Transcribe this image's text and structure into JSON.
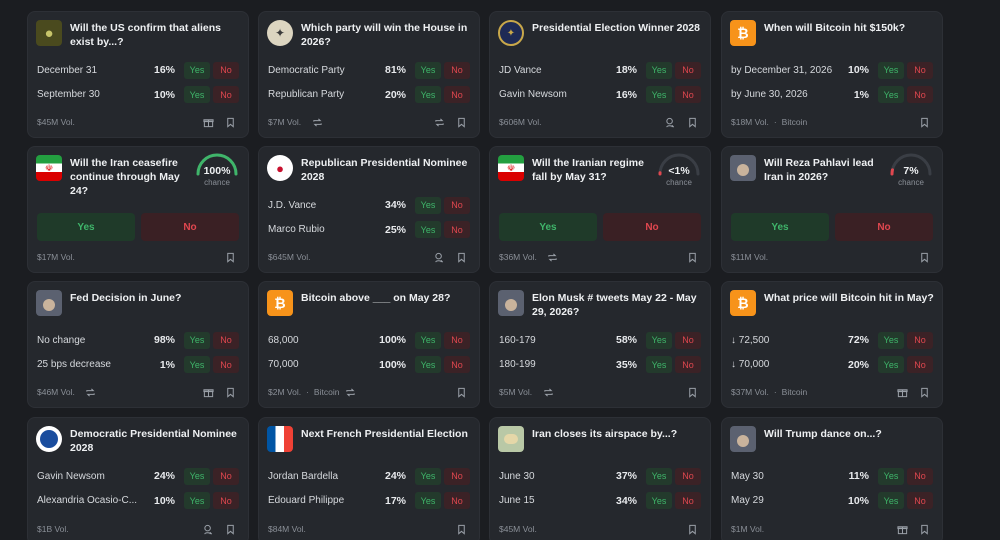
{
  "cards": [
    {
      "title": "Will the US confirm that aliens exist by...?",
      "thumb": "alien-thumb",
      "rows": [
        {
          "name": "December 31",
          "pct": "16%"
        },
        {
          "name": "September 30",
          "pct": "10%"
        }
      ],
      "vol": "$45M Vol.",
      "tag": ""
    },
    {
      "title": "Which party will win the House in 2026?",
      "thumb": "house-seal-thumb",
      "rows": [
        {
          "name": "Democratic Party",
          "pct": "81%"
        },
        {
          "name": "Republican Party",
          "pct": "20%"
        }
      ],
      "vol": "$7M Vol.",
      "tag": ""
    },
    {
      "title": "Presidential Election Winner 2028",
      "thumb": "presidential-seal-thumb",
      "rows": [
        {
          "name": "JD Vance",
          "pct": "18%"
        },
        {
          "name": "Gavin Newsom",
          "pct": "16%"
        }
      ],
      "vol": "$606M Vol.",
      "tag": ""
    },
    {
      "title": "When will Bitcoin hit $150k?",
      "thumb": "bitcoin-thumb",
      "rows": [
        {
          "name": "by December 31, 2026",
          "pct": "10%"
        },
        {
          "name": "by June 30, 2026",
          "pct": "1%"
        }
      ],
      "vol": "$18M Vol.",
      "tag": "Bitcoin"
    },
    {
      "title": "Will the Iran ceasefire continue through May 24?",
      "thumb": "iran-flag-thumb",
      "gauge": {
        "value": "100%",
        "label": "chance",
        "level": 1.0
      },
      "vol": "$17M Vol.",
      "tag": ""
    },
    {
      "title": "Republican Presidential Nominee 2028",
      "thumb": "gop-thumb",
      "rows": [
        {
          "name": "J.D. Vance",
          "pct": "34%"
        },
        {
          "name": "Marco Rubio",
          "pct": "25%"
        }
      ],
      "vol": "$645M Vol.",
      "tag": ""
    },
    {
      "title": "Will the Iranian regime fall by May 31?",
      "thumb": "iran-flag-thumb",
      "gauge": {
        "value": "<1%",
        "label": "chance",
        "level": 0.01
      },
      "vol": "$36M Vol.",
      "tag": ""
    },
    {
      "title": "Will Reza Pahlavi lead Iran in 2026?",
      "thumb": "person-thumb",
      "gauge": {
        "value": "7%",
        "label": "chance",
        "level": 0.07
      },
      "vol": "$11M Vol.",
      "tag": ""
    },
    {
      "title": "Fed Decision in June?",
      "thumb": "person-thumb",
      "rows": [
        {
          "name": "No change",
          "pct": "98%"
        },
        {
          "name": "25 bps decrease",
          "pct": "1%"
        }
      ],
      "vol": "$46M Vol.",
      "tag": ""
    },
    {
      "title": "Bitcoin above ___ on May 28?",
      "thumb": "bitcoin-thumb",
      "rows": [
        {
          "name": "68,000",
          "pct": "100%"
        },
        {
          "name": "70,000",
          "pct": "100%"
        }
      ],
      "vol": "$2M Vol.",
      "tag": "Bitcoin"
    },
    {
      "title": "Elon Musk # tweets May 22 - May 29, 2026?",
      "thumb": "person-thumb",
      "rows": [
        {
          "name": "160-179",
          "pct": "58%"
        },
        {
          "name": "180-199",
          "pct": "35%"
        }
      ],
      "vol": "$5M Vol.",
      "tag": ""
    },
    {
      "title": "What price will Bitcoin hit in May?",
      "thumb": "bitcoin-thumb",
      "rows": [
        {
          "name": "↓ 72,500",
          "pct": "72%"
        },
        {
          "name": "↓ 70,000",
          "pct": "20%"
        }
      ],
      "vol": "$37M Vol.",
      "tag": "Bitcoin"
    },
    {
      "title": "Democratic Presidential Nominee 2028",
      "thumb": "dem-thumb",
      "rows": [
        {
          "name": "Gavin Newsom",
          "pct": "24%"
        },
        {
          "name": "Alexandria Ocasio-C...",
          "pct": "10%"
        }
      ],
      "vol": "$1B Vol.",
      "tag": ""
    },
    {
      "title": "Next French Presidential Election",
      "thumb": "france-flag-thumb",
      "rows": [
        {
          "name": "Jordan Bardella",
          "pct": "24%"
        },
        {
          "name": "Édouard Philippe",
          "pct": "17%"
        }
      ],
      "vol": "$84M Vol.",
      "tag": ""
    },
    {
      "title": "Iran closes its airspace by...?",
      "thumb": "map-thumb",
      "rows": [
        {
          "name": "June 30",
          "pct": "37%"
        },
        {
          "name": "June 15",
          "pct": "34%"
        }
      ],
      "vol": "$45M Vol.",
      "tag": ""
    },
    {
      "title": "Will Trump dance on...?",
      "thumb": "person-thumb",
      "rows": [
        {
          "name": "May 30",
          "pct": "11%"
        },
        {
          "name": "May 29",
          "pct": "10%"
        }
      ],
      "vol": "$1M Vol.",
      "tag": ""
    }
  ],
  "labels": {
    "yes": "Yes",
    "no": "No",
    "separator": "·"
  },
  "colors": {
    "yes": "#3fb56a",
    "no": "#e0474f",
    "gauge_high": "#3fb56a",
    "gauge_low": "#e0474f"
  }
}
